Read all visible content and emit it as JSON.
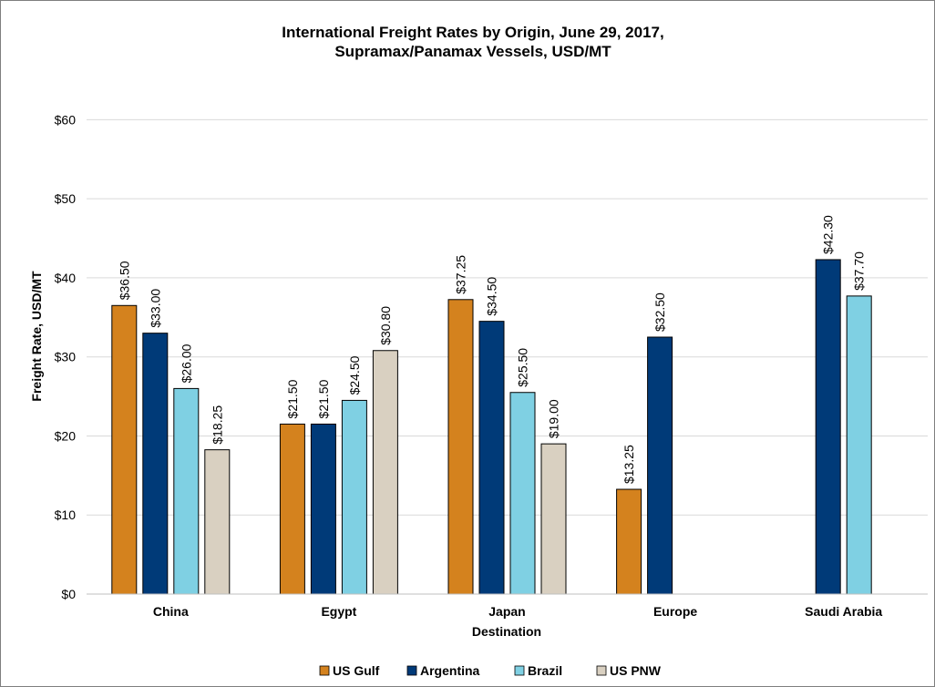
{
  "chart_data": {
    "type": "bar",
    "title": [
      "International Freight Rates by Origin, June 29, 2017,",
      "Supramax/Panamax Vessels, USD/MT"
    ],
    "xlabel": "Destination",
    "ylabel": "Freight Rate, USD/MT",
    "ylim": [
      0,
      65
    ],
    "yticks": [
      0,
      10,
      20,
      30,
      40,
      50,
      60
    ],
    "ytick_labels": [
      "$0",
      "$10",
      "$20",
      "$30",
      "$40",
      "$50",
      "$60"
    ],
    "grid": true,
    "legend_position": "bottom",
    "categories": [
      "China",
      "Egypt",
      "Japan",
      "Europe",
      "Saudi Arabia"
    ],
    "series": [
      {
        "name": "US Gulf",
        "color": "#d4821e",
        "values": [
          36.5,
          21.5,
          37.25,
          13.25,
          null
        ],
        "labels": [
          "$36.50",
          "$21.50",
          "$37.25",
          "$13.25",
          null
        ]
      },
      {
        "name": "Argentina",
        "color": "#003a78",
        "values": [
          33.0,
          21.5,
          34.5,
          32.5,
          42.3
        ],
        "labels": [
          "$33.00",
          "$21.50",
          "$34.50",
          "$32.50",
          "$42.30"
        ]
      },
      {
        "name": "Brazil",
        "color": "#7fd0e3",
        "values": [
          26.0,
          24.5,
          25.5,
          null,
          37.7
        ],
        "labels": [
          "$26.00",
          "$24.50",
          "$25.50",
          null,
          "$37.70"
        ]
      },
      {
        "name": "US PNW",
        "color": "#d9d0c1",
        "values": [
          18.25,
          30.8,
          19.0,
          null,
          null
        ],
        "labels": [
          "$18.25",
          "$30.80",
          "$19.00",
          null,
          null
        ]
      }
    ]
  }
}
